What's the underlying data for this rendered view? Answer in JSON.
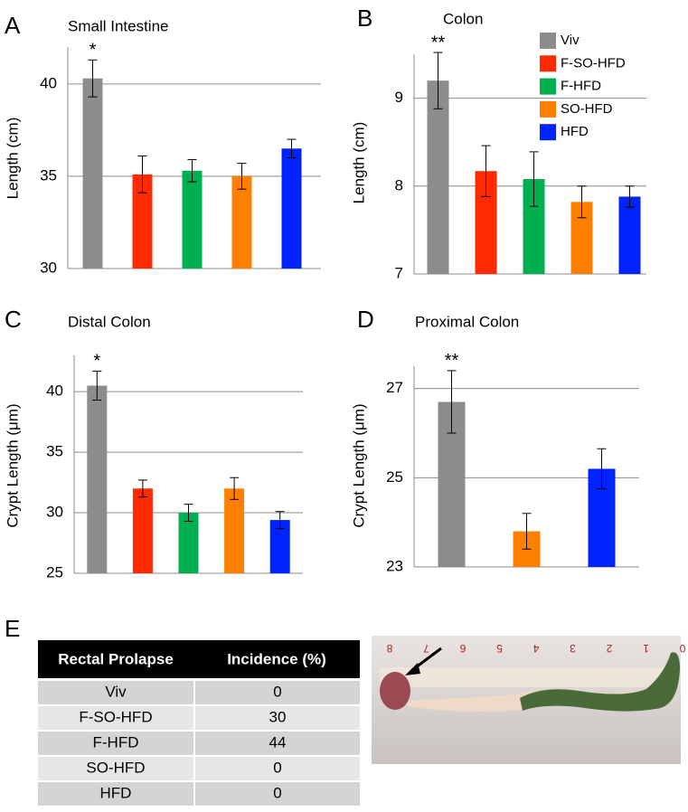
{
  "panels": [
    "A",
    "B",
    "C",
    "D",
    "E"
  ],
  "chart_data": [
    {
      "type": "bar",
      "title": "Small Intestine",
      "ylabel": "Length (cm)",
      "annotation": "*",
      "categories": [
        "Viv",
        "F-SO-HFD",
        "F-HFD",
        "SO-HFD",
        "HFD"
      ],
      "values": [
        40.3,
        35.1,
        35.3,
        35.0,
        36.5
      ],
      "errors": [
        1.0,
        1.0,
        0.6,
        0.7,
        0.5
      ],
      "colors": [
        "#8c8c8c",
        "#ff2a00",
        "#00b050",
        "#ff8000",
        "#0022ff"
      ],
      "ylim": [
        30,
        42
      ],
      "yticks": [
        30,
        35,
        40
      ],
      "grid": true
    },
    {
      "type": "bar",
      "title": "Colon",
      "ylabel": "Length (cm)",
      "annotation": "**",
      "legend": "upper right",
      "categories": [
        "Viv",
        "F-SO-HFD",
        "F-HFD",
        "SO-HFD",
        "HFD"
      ],
      "values": [
        9.2,
        8.17,
        8.08,
        7.82,
        7.88
      ],
      "errors": [
        0.32,
        0.29,
        0.31,
        0.18,
        0.12
      ],
      "colors": [
        "#8c8c8c",
        "#ff2a00",
        "#00b050",
        "#ff8000",
        "#0022ff"
      ],
      "ylim": [
        7,
        9.5
      ],
      "yticks": [
        7,
        8,
        9
      ],
      "grid": true
    },
    {
      "type": "bar",
      "title": "Distal Colon",
      "ylabel": "Crypt Length (μm)",
      "annotation": "*",
      "categories": [
        "Viv",
        "F-SO-HFD",
        "F-HFD",
        "SO-HFD",
        "HFD"
      ],
      "values": [
        40.5,
        32.0,
        30.0,
        32.0,
        29.4
      ],
      "errors": [
        1.2,
        0.7,
        0.7,
        0.9,
        0.7
      ],
      "colors": [
        "#8c8c8c",
        "#ff2a00",
        "#00b050",
        "#ff8000",
        "#0022ff"
      ],
      "ylim": [
        25,
        43
      ],
      "yticks": [
        25,
        30,
        35,
        40
      ],
      "grid": true
    },
    {
      "type": "bar",
      "title": "Proximal Colon",
      "ylabel": "Crypt Length (μm)",
      "annotation": "**",
      "categories": [
        "Viv",
        "SO-HFD",
        "HFD"
      ],
      "values": [
        26.7,
        23.8,
        25.2
      ],
      "errors": [
        0.7,
        0.4,
        0.45
      ],
      "colors": [
        "#8c8c8c",
        "#ff8000",
        "#0022ff"
      ],
      "ylim": [
        23,
        27.5
      ],
      "yticks": [
        23,
        25,
        27
      ],
      "grid": true
    }
  ],
  "table": {
    "header": [
      "Rectal Prolapse",
      "Incidence (%)"
    ],
    "rows": [
      [
        "Viv",
        "0"
      ],
      [
        "F-SO-HFD",
        "30"
      ],
      [
        "F-HFD",
        "44"
      ],
      [
        "SO-HFD",
        "0"
      ],
      [
        "HFD",
        "0"
      ]
    ]
  },
  "photo": {
    "ruler_labels": [
      "8",
      "7",
      "6",
      "5",
      "4",
      "3",
      "2",
      "1",
      "0"
    ]
  }
}
